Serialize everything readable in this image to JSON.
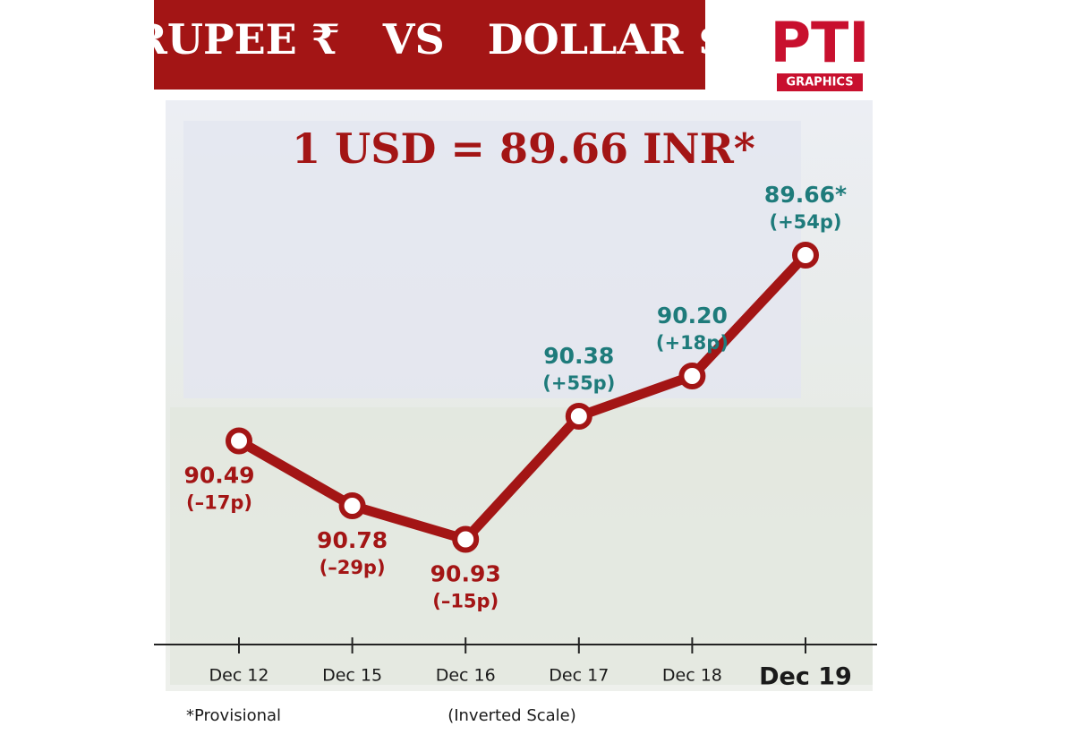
{
  "chart_data": {
    "type": "line",
    "title": "RUPEE ₹   VS   DOLLAR $",
    "headline": "1 USD = 89.66 INR*",
    "logo": "PTI",
    "logo_subtitle": "GRAPHICS",
    "categories": [
      "Dec 12",
      "Dec 15",
      "Dec 16",
      "Dec 17",
      "Dec 18",
      "Dec 19"
    ],
    "values": [
      90.49,
      90.78,
      90.93,
      90.38,
      90.2,
      89.66
    ],
    "value_labels": [
      "90.49",
      "90.78",
      "90.93",
      "90.38",
      "90.20",
      "89.66*"
    ],
    "change_labels": [
      "(–17p)",
      "(–29p)",
      "(–15p)",
      "(+55p)",
      "(+18p)",
      "(+54p)"
    ],
    "label_colors": [
      "#a31515",
      "#a31515",
      "#a31515",
      "#1e7b7b",
      "#1e7b7b",
      "#1e7b7b"
    ],
    "color": "#a31515",
    "ylim": [
      91.4,
      89.0
    ],
    "footnote": "*Provisional",
    "scale_note": "(Inverted Scale)"
  }
}
